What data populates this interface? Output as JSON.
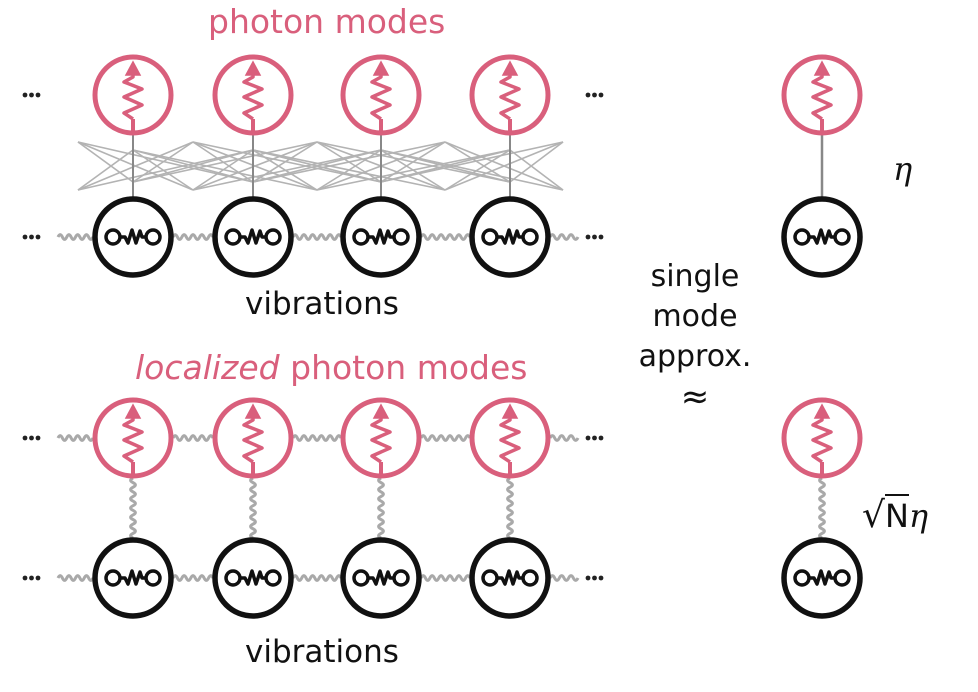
{
  "colors": {
    "photon": "#d95f7c",
    "vibration": "#111111",
    "coupling_gray": "#9a9a9a",
    "spring_gray": "#a9a9a9"
  },
  "top": {
    "title": "photon modes",
    "bottom_label": "vibrations",
    "ellipsis": "..."
  },
  "bottom": {
    "title_italic": "localized",
    "title_rest": " photon modes",
    "bottom_label": "vibrations",
    "ellipsis": "..."
  },
  "middle": {
    "lines": [
      "single",
      "mode",
      "approx."
    ],
    "symbol": "≈"
  },
  "right": {
    "eta_label": "η",
    "sqrt_symbol": "√",
    "sqrt_arg": "N",
    "sqrt_eta": "η"
  },
  "icons": {
    "photon": "photon-wavy-arrow-icon",
    "vibration": "mass-spring-oscillator-icon"
  }
}
